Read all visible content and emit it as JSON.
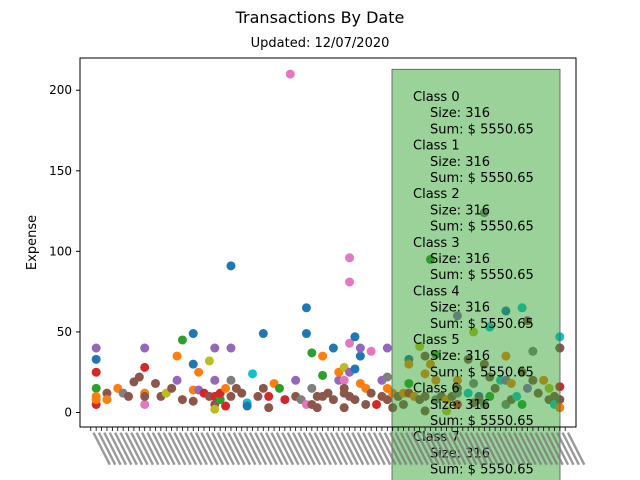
{
  "chart_data": {
    "type": "scatter",
    "title": "Transactions By Date",
    "subtitle": "Updated: 12/07/2020",
    "ylabel": "Expense",
    "xlabel": "",
    "ylim": [
      -9,
      220
    ],
    "yticks": [
      0,
      50,
      100,
      150,
      200
    ],
    "x_tick_labels": "dense rotated date labels (illegible)",
    "grid": false,
    "palette": [
      "#1f77b4",
      "#ff7f0e",
      "#2ca02c",
      "#d62728",
      "#9467bd",
      "#8c564b",
      "#e377c2",
      "#7f7f7f",
      "#bcbd22",
      "#17becf"
    ],
    "class_panel": {
      "color": "#2ca02c",
      "y_top": 213,
      "entries": [
        {
          "label": "Class  0",
          "size": "Size: 316",
          "sum": "Sum: $ 5550.65"
        },
        {
          "label": "Class  1",
          "size": "Size: 316",
          "sum": "Sum: $ 5550.65"
        },
        {
          "label": "Class  2",
          "size": "Size: 316",
          "sum": "Sum: $ 5550.65"
        },
        {
          "label": "Class  3",
          "size": "Size: 316",
          "sum": "Sum: $ 5550.65"
        },
        {
          "label": "Class  4",
          "size": "Size: 316",
          "sum": "Sum: $ 5550.65"
        },
        {
          "label": "Class  5",
          "size": "Size: 316",
          "sum": "Sum: $ 5550.65"
        },
        {
          "label": "Class  6",
          "size": "Size: 316",
          "sum": "Sum: $ 5550.65"
        },
        {
          "label": "Class  7",
          "size": "Size: 316",
          "sum": "Sum: $ 5550.65"
        }
      ]
    },
    "points": [
      [
        1,
        40,
        4
      ],
      [
        1,
        33,
        0
      ],
      [
        1,
        25,
        3
      ],
      [
        1,
        15,
        2
      ],
      [
        1,
        10,
        1
      ],
      [
        1,
        5,
        3
      ],
      [
        1,
        8,
        1
      ],
      [
        3,
        12,
        5
      ],
      [
        3,
        8,
        1
      ],
      [
        5,
        15,
        1
      ],
      [
        6,
        12,
        7
      ],
      [
        7,
        10,
        5
      ],
      [
        8,
        19,
        5
      ],
      [
        9,
        22,
        5
      ],
      [
        10,
        40,
        4
      ],
      [
        10,
        28,
        3
      ],
      [
        10,
        12,
        1
      ],
      [
        10,
        5,
        6
      ],
      [
        10,
        10,
        5
      ],
      [
        12,
        18,
        5
      ],
      [
        13,
        10,
        5
      ],
      [
        14,
        12,
        8
      ],
      [
        15,
        15,
        5
      ],
      [
        16,
        35,
        1
      ],
      [
        16,
        20,
        4
      ],
      [
        17,
        45,
        2
      ],
      [
        17,
        8,
        5
      ],
      [
        19,
        49,
        0
      ],
      [
        19,
        30,
        0
      ],
      [
        19,
        14,
        1
      ],
      [
        19,
        7,
        5
      ],
      [
        20,
        25,
        1
      ],
      [
        20,
        14,
        4
      ],
      [
        21,
        12,
        3
      ],
      [
        22,
        32,
        8
      ],
      [
        22,
        10,
        5
      ],
      [
        23,
        40,
        4
      ],
      [
        23,
        20,
        4
      ],
      [
        23,
        10,
        3
      ],
      [
        23,
        5,
        5
      ],
      [
        23,
        2,
        8
      ],
      [
        24,
        8,
        2
      ],
      [
        24,
        12,
        3
      ],
      [
        25,
        15,
        1
      ],
      [
        25,
        4,
        3
      ],
      [
        26,
        91,
        0
      ],
      [
        26,
        40,
        4
      ],
      [
        26,
        20,
        7
      ],
      [
        26,
        10,
        5
      ],
      [
        27,
        15,
        5
      ],
      [
        28,
        12,
        5
      ],
      [
        29,
        6,
        9
      ],
      [
        29,
        4,
        0
      ],
      [
        30,
        24,
        9
      ],
      [
        31,
        10,
        5
      ],
      [
        32,
        49,
        0
      ],
      [
        32,
        15,
        5
      ],
      [
        33,
        3,
        5
      ],
      [
        33,
        10,
        3
      ],
      [
        34,
        18,
        1
      ],
      [
        35,
        15,
        2
      ],
      [
        36,
        8,
        3
      ],
      [
        37,
        210,
        6
      ],
      [
        38,
        20,
        4
      ],
      [
        38,
        10,
        5
      ],
      [
        39,
        8,
        7
      ],
      [
        40,
        65,
        0
      ],
      [
        40,
        49,
        0
      ],
      [
        40,
        5,
        6
      ],
      [
        41,
        37,
        2
      ],
      [
        41,
        15,
        7
      ],
      [
        41,
        5,
        5
      ],
      [
        42,
        10,
        5
      ],
      [
        42,
        3,
        5
      ],
      [
        43,
        35,
        1
      ],
      [
        43,
        23,
        2
      ],
      [
        43,
        10,
        5
      ],
      [
        44,
        12,
        5
      ],
      [
        45,
        8,
        5
      ],
      [
        45,
        40,
        0
      ],
      [
        46,
        20,
        4
      ],
      [
        46,
        25,
        1
      ],
      [
        47,
        28,
        8
      ],
      [
        47,
        20,
        6
      ],
      [
        47,
        15,
        5
      ],
      [
        47,
        12,
        5
      ],
      [
        47,
        3,
        5
      ],
      [
        48,
        96,
        6
      ],
      [
        48,
        81,
        6
      ],
      [
        48,
        43,
        6
      ],
      [
        48,
        25,
        4
      ],
      [
        48,
        10,
        5
      ],
      [
        49,
        47,
        0
      ],
      [
        49,
        27,
        0
      ],
      [
        49,
        8,
        5
      ],
      [
        50,
        35,
        0
      ],
      [
        50,
        40,
        4
      ],
      [
        50,
        18,
        1
      ],
      [
        51,
        15,
        1
      ],
      [
        51,
        5,
        5
      ],
      [
        52,
        38,
        6
      ],
      [
        52,
        12,
        5
      ],
      [
        53,
        5,
        3
      ],
      [
        54,
        20,
        4
      ],
      [
        54,
        10,
        5
      ],
      [
        55,
        40,
        4
      ],
      [
        55,
        22,
        7
      ],
      [
        55,
        15,
        1
      ],
      [
        55,
        8,
        5
      ],
      [
        56,
        12,
        1
      ],
      [
        56,
        3,
        5
      ],
      [
        57,
        10,
        5
      ],
      [
        58,
        12,
        1
      ],
      [
        58,
        5,
        5
      ],
      [
        59,
        33,
        0
      ],
      [
        59,
        30,
        1
      ],
      [
        59,
        18,
        2
      ],
      [
        59,
        12,
        3
      ],
      [
        60,
        10,
        1
      ],
      [
        61,
        8,
        5
      ],
      [
        61,
        41,
        8
      ],
      [
        62,
        35,
        5
      ],
      [
        62,
        24,
        1
      ],
      [
        62,
        10,
        5
      ],
      [
        62,
        1,
        5
      ],
      [
        63,
        95,
        2
      ],
      [
        63,
        30,
        1
      ],
      [
        64,
        36,
        2
      ],
      [
        64,
        20,
        1
      ],
      [
        64,
        8,
        7
      ],
      [
        65,
        10,
        5
      ],
      [
        66,
        8,
        1
      ],
      [
        66,
        1,
        8
      ],
      [
        67,
        10,
        5
      ],
      [
        68,
        60,
        4
      ],
      [
        68,
        20,
        1
      ],
      [
        68,
        15,
        5
      ],
      [
        68,
        5,
        3
      ],
      [
        68,
        12,
        7
      ],
      [
        70,
        33,
        5
      ],
      [
        70,
        12,
        9
      ],
      [
        71,
        50,
        8
      ],
      [
        71,
        18,
        7
      ],
      [
        71,
        6,
        5
      ],
      [
        72,
        10,
        0
      ],
      [
        72,
        8,
        5
      ],
      [
        73,
        124,
        7
      ],
      [
        73,
        30,
        5
      ],
      [
        73,
        5,
        7
      ],
      [
        74,
        53,
        9
      ],
      [
        74,
        22,
        5
      ],
      [
        74,
        10,
        2
      ],
      [
        75,
        15,
        5
      ],
      [
        76,
        20,
        9
      ],
      [
        77,
        63,
        0
      ],
      [
        77,
        35,
        1
      ],
      [
        77,
        20,
        4
      ],
      [
        77,
        5,
        7
      ],
      [
        78,
        18,
        1
      ],
      [
        78,
        8,
        5
      ],
      [
        79,
        10,
        9
      ],
      [
        80,
        65,
        9
      ],
      [
        80,
        25,
        5
      ],
      [
        80,
        5,
        2
      ],
      [
        81,
        57,
        5
      ],
      [
        81,
        15,
        4
      ],
      [
        82,
        38,
        7
      ],
      [
        82,
        20,
        5
      ],
      [
        83,
        12,
        5
      ],
      [
        84,
        20,
        1
      ],
      [
        85,
        15,
        8
      ],
      [
        85,
        8,
        5
      ],
      [
        86,
        10,
        5
      ],
      [
        86,
        5,
        9
      ],
      [
        87,
        47,
        9
      ],
      [
        87,
        40,
        0
      ],
      [
        87,
        40,
        5
      ],
      [
        87,
        16,
        3
      ],
      [
        87,
        8,
        5
      ],
      [
        87,
        3,
        1
      ]
    ]
  }
}
